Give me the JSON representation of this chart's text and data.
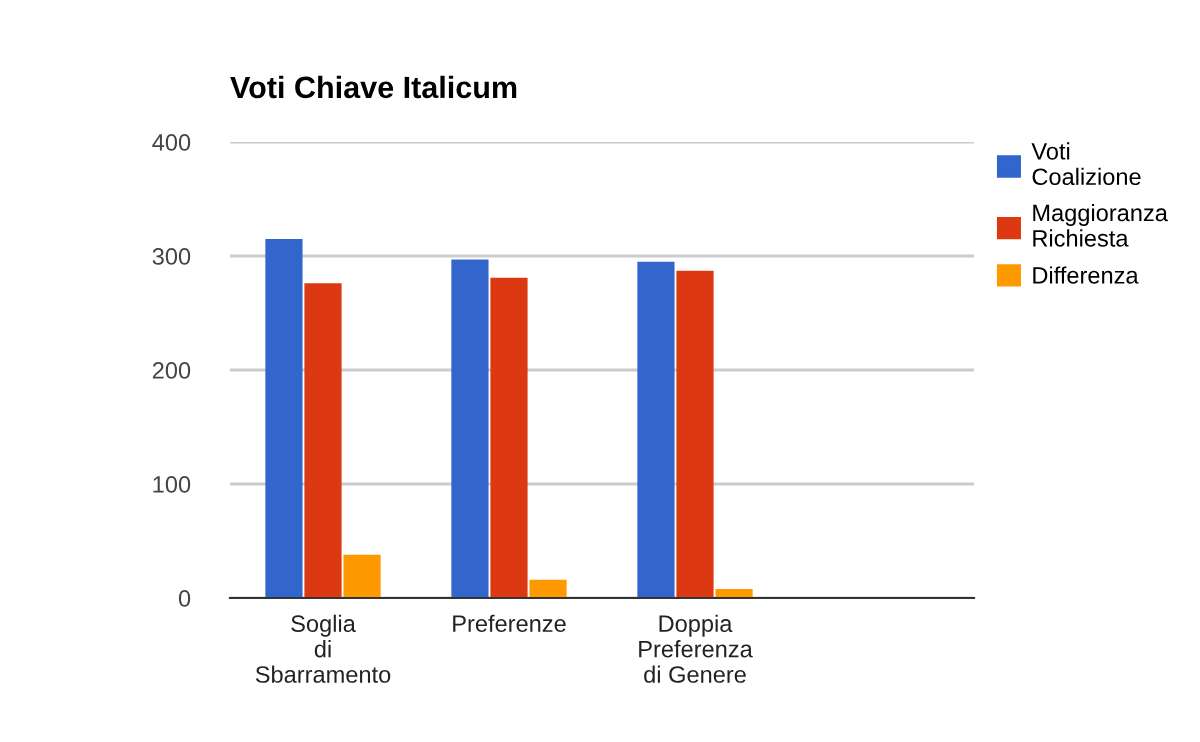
{
  "chart_data": {
    "type": "bar",
    "title": "Voti Chiave Italicum",
    "categories": [
      "Soglia di Sbarramento",
      "Preferenze",
      "Doppia Preferenza di Genere",
      null
    ],
    "series": [
      {
        "name": "Voti Coalizione",
        "color": "#3366cc",
        "values": [
          315,
          297,
          295,
          null
        ]
      },
      {
        "name": "Maggioranza Richiesta",
        "color": "#dc3912",
        "values": [
          276,
          281,
          287,
          null
        ]
      },
      {
        "name": "Differenza",
        "color": "#ff9900",
        "values": [
          38,
          16,
          8,
          null
        ]
      }
    ],
    "ylim": [
      0,
      400
    ],
    "yticks": [
      0,
      100,
      200,
      300,
      400
    ],
    "grid": "y",
    "legend": "top right"
  }
}
